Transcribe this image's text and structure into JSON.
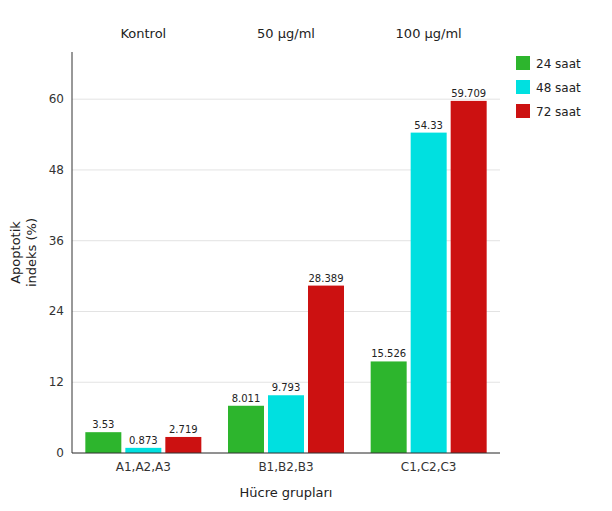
{
  "chart_data": {
    "type": "bar",
    "categories": [
      "A1,A2,A3",
      "B1,B2,B3",
      "C1,C2,C3"
    ],
    "annotations": [
      "Kontrol",
      "50 µg/ml",
      "100 µg/ml"
    ],
    "series": [
      {
        "name": "24 saat",
        "color": "#2db52d",
        "values": [
          3.53,
          8.011,
          15.526
        ]
      },
      {
        "name": "48 saat",
        "color": "#00e0e0",
        "values": [
          0.873,
          9.793,
          54.33
        ]
      },
      {
        "name": "72 saat",
        "color": "#cc1111",
        "values": [
          2.719,
          28.389,
          59.709
        ]
      }
    ],
    "xlabel": "Hücre grupları",
    "ylabel": "Apoptotik\nindeks (%)",
    "ylim": [
      0,
      68
    ],
    "yticks": [
      0,
      12,
      24,
      36,
      48,
      60
    ],
    "grid": true,
    "legend": "right",
    "data_labels": true
  }
}
